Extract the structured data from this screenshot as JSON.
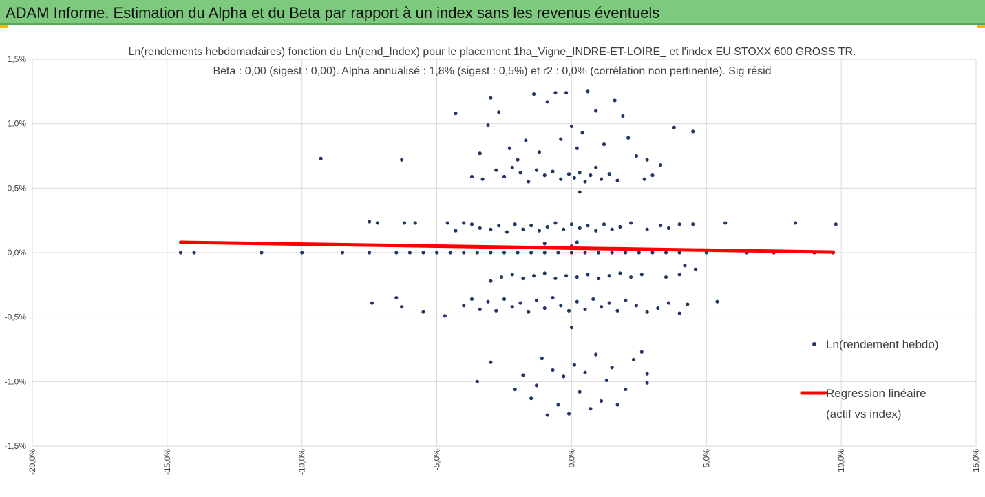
{
  "banner": {
    "title": "ADAM Informe. Estimation du Alpha et du Beta par rapport à un index sans les revenus éventuels",
    "background": "#7dc97d"
  },
  "chart_data": {
    "type": "scatter",
    "title_lines": [
      "Ln(rendements hebdomadaires) fonction du Ln(rend_Index) pour le placement 1ha_Vigne_INDRE-ET-LOIRE_ et l'index EU STOXX 600 GROSS TR.",
      "Beta : 0,00 (sigest : 0,00). Alpha annualisé : 1,8% (sigest : 0,5%) et r2 : 0,0% (corrélation non pertinente). Sig résid"
    ],
    "xlim": [
      -0.2,
      0.15
    ],
    "ylim": [
      -0.015,
      0.015
    ],
    "x_ticks": [
      -0.2,
      -0.15,
      -0.1,
      -0.05,
      0,
      0.05,
      0.1,
      0.15
    ],
    "x_tick_labels": [
      "-20,0%",
      "-15,0%",
      "-10,0%",
      "-5,0%",
      "0,0%",
      "5,0%",
      "10,0%",
      "15,0%"
    ],
    "y_ticks": [
      -0.015,
      -0.01,
      -0.005,
      0,
      0.005,
      0.01,
      0.015
    ],
    "y_tick_labels": [
      "-1,5%",
      "-1,0%",
      "-0,5%",
      "0,0%",
      "0,5%",
      "1,0%",
      "1,5%"
    ],
    "grid": true,
    "legend_position": "right",
    "series": [
      {
        "name": "Ln(rendement hebdo)",
        "kind": "scatter",
        "color": "#1f3864",
        "points": [
          [
            -0.145,
            0.0
          ],
          [
            -0.14,
            0.0
          ],
          [
            -0.115,
            0.0
          ],
          [
            -0.1,
            0.0
          ],
          [
            -0.085,
            0.0
          ],
          [
            -0.075,
            0.0
          ],
          [
            -0.065,
            0.0
          ],
          [
            -0.06,
            0.0
          ],
          [
            -0.055,
            0.0
          ],
          [
            -0.05,
            0.0
          ],
          [
            -0.045,
            0.0
          ],
          [
            -0.04,
            0.0
          ],
          [
            -0.035,
            0.0
          ],
          [
            -0.03,
            0.0
          ],
          [
            -0.025,
            0.0
          ],
          [
            -0.02,
            0.0
          ],
          [
            -0.015,
            0.0
          ],
          [
            -0.01,
            0.0
          ],
          [
            -0.005,
            0.0
          ],
          [
            0.0,
            0.0
          ],
          [
            0.005,
            0.0
          ],
          [
            0.01,
            0.0
          ],
          [
            0.015,
            0.0
          ],
          [
            0.02,
            0.0
          ],
          [
            0.025,
            0.0
          ],
          [
            0.03,
            0.0
          ],
          [
            0.035,
            0.0
          ],
          [
            0.04,
            0.0
          ],
          [
            0.05,
            0.0
          ],
          [
            0.065,
            0.0
          ],
          [
            0.075,
            0.0
          ],
          [
            0.09,
            0.0
          ],
          [
            0.097,
            0.0
          ],
          [
            -0.093,
            0.0073
          ],
          [
            -0.063,
            0.0072
          ],
          [
            -0.043,
            0.0108
          ],
          [
            -0.034,
            0.0077
          ],
          [
            -0.031,
            0.0099
          ],
          [
            -0.03,
            0.012
          ],
          [
            -0.027,
            0.0109
          ],
          [
            -0.023,
            0.0081
          ],
          [
            -0.02,
            0.0072
          ],
          [
            -0.017,
            0.0087
          ],
          [
            -0.014,
            0.0123
          ],
          [
            -0.012,
            0.0078
          ],
          [
            -0.009,
            0.0117
          ],
          [
            -0.006,
            0.0124
          ],
          [
            -0.004,
            0.0088
          ],
          [
            -0.002,
            0.0124
          ],
          [
            0.0,
            0.0098
          ],
          [
            0.002,
            0.0081
          ],
          [
            0.004,
            0.0093
          ],
          [
            0.006,
            0.0125
          ],
          [
            0.009,
            0.011
          ],
          [
            0.012,
            0.0084
          ],
          [
            0.016,
            0.0118
          ],
          [
            0.019,
            0.0106
          ],
          [
            0.021,
            0.0089
          ],
          [
            0.024,
            0.0075
          ],
          [
            0.028,
            0.0072
          ],
          [
            0.033,
            0.0068
          ],
          [
            0.038,
            0.0097
          ],
          [
            0.045,
            0.0094
          ],
          [
            -0.037,
            0.0059
          ],
          [
            -0.033,
            0.0057
          ],
          [
            -0.028,
            0.0064
          ],
          [
            -0.025,
            0.0059
          ],
          [
            -0.022,
            0.0066
          ],
          [
            -0.019,
            0.0062
          ],
          [
            -0.016,
            0.0055
          ],
          [
            -0.013,
            0.0064
          ],
          [
            -0.01,
            0.006
          ],
          [
            -0.007,
            0.0063
          ],
          [
            -0.004,
            0.0057
          ],
          [
            -0.001,
            0.0061
          ],
          [
            0.001,
            0.0058
          ],
          [
            0.003,
            0.0062
          ],
          [
            0.005,
            0.0055
          ],
          [
            0.007,
            0.006
          ],
          [
            0.009,
            0.0066
          ],
          [
            0.011,
            0.0057
          ],
          [
            0.014,
            0.0061
          ],
          [
            0.017,
            0.0056
          ],
          [
            0.027,
            0.0057
          ],
          [
            0.03,
            0.006
          ],
          [
            0.003,
            0.0047
          ],
          [
            -0.075,
            0.0024
          ],
          [
            -0.072,
            0.0023
          ],
          [
            -0.062,
            0.0023
          ],
          [
            -0.058,
            0.0023
          ],
          [
            -0.046,
            0.0023
          ],
          [
            -0.043,
            0.0017
          ],
          [
            -0.04,
            0.0023
          ],
          [
            -0.037,
            0.0022
          ],
          [
            -0.034,
            0.0019
          ],
          [
            -0.03,
            0.0018
          ],
          [
            -0.027,
            0.0021
          ],
          [
            -0.024,
            0.0016
          ],
          [
            -0.021,
            0.0022
          ],
          [
            -0.018,
            0.0018
          ],
          [
            -0.015,
            0.0021
          ],
          [
            -0.012,
            0.0017
          ],
          [
            -0.009,
            0.002
          ],
          [
            -0.006,
            0.0023
          ],
          [
            -0.003,
            0.0018
          ],
          [
            0.0,
            0.0022
          ],
          [
            0.003,
            0.0019
          ],
          [
            0.006,
            0.0021
          ],
          [
            0.009,
            0.0017
          ],
          [
            0.012,
            0.0022
          ],
          [
            0.015,
            0.0018
          ],
          [
            0.018,
            0.002
          ],
          [
            0.022,
            0.0023
          ],
          [
            0.028,
            0.0018
          ],
          [
            0.033,
            0.0021
          ],
          [
            0.036,
            0.0019
          ],
          [
            0.04,
            0.0022
          ],
          [
            0.045,
            0.0022
          ],
          [
            0.057,
            0.0023
          ],
          [
            0.083,
            0.0023
          ],
          [
            0.098,
            0.0022
          ],
          [
            0.0,
            0.0005
          ],
          [
            0.002,
            0.0008
          ],
          [
            -0.01,
            0.0007
          ],
          [
            -0.03,
            -0.0022
          ],
          [
            -0.026,
            -0.0019
          ],
          [
            -0.022,
            -0.0017
          ],
          [
            -0.018,
            -0.002
          ],
          [
            -0.014,
            -0.0018
          ],
          [
            -0.01,
            -0.0016
          ],
          [
            -0.006,
            -0.002
          ],
          [
            -0.002,
            -0.0018
          ],
          [
            0.002,
            -0.0019
          ],
          [
            0.006,
            -0.0017
          ],
          [
            0.01,
            -0.002
          ],
          [
            0.014,
            -0.0018
          ],
          [
            0.018,
            -0.0016
          ],
          [
            0.022,
            -0.0019
          ],
          [
            0.026,
            -0.0017
          ],
          [
            0.035,
            -0.0019
          ],
          [
            0.04,
            -0.0017
          ],
          [
            0.042,
            -0.001
          ],
          [
            0.046,
            -0.0013
          ],
          [
            -0.074,
            -0.0039
          ],
          [
            -0.065,
            -0.0035
          ],
          [
            -0.063,
            -0.0042
          ],
          [
            -0.055,
            -0.0046
          ],
          [
            -0.047,
            -0.0049
          ],
          [
            -0.04,
            -0.0041
          ],
          [
            -0.037,
            -0.0036
          ],
          [
            -0.034,
            -0.0044
          ],
          [
            -0.031,
            -0.0038
          ],
          [
            -0.028,
            -0.0045
          ],
          [
            -0.025,
            -0.0036
          ],
          [
            -0.022,
            -0.0042
          ],
          [
            -0.019,
            -0.0039
          ],
          [
            -0.016,
            -0.0046
          ],
          [
            -0.013,
            -0.0037
          ],
          [
            -0.01,
            -0.0043
          ],
          [
            -0.007,
            -0.0035
          ],
          [
            -0.004,
            -0.0041
          ],
          [
            -0.001,
            -0.0045
          ],
          [
            0.002,
            -0.0038
          ],
          [
            0.005,
            -0.0044
          ],
          [
            0.008,
            -0.0036
          ],
          [
            0.011,
            -0.0042
          ],
          [
            0.014,
            -0.0039
          ],
          [
            0.017,
            -0.0045
          ],
          [
            0.02,
            -0.0037
          ],
          [
            0.024,
            -0.0041
          ],
          [
            0.028,
            -0.0046
          ],
          [
            0.032,
            -0.0043
          ],
          [
            0.036,
            -0.0039
          ],
          [
            0.04,
            -0.0047
          ],
          [
            0.043,
            -0.004
          ],
          [
            0.054,
            -0.0038
          ],
          [
            0.0,
            -0.0058
          ],
          [
            -0.035,
            -0.01
          ],
          [
            -0.03,
            -0.0085
          ],
          [
            -0.021,
            -0.0106
          ],
          [
            -0.018,
            -0.0095
          ],
          [
            -0.015,
            -0.0113
          ],
          [
            -0.013,
            -0.0103
          ],
          [
            -0.011,
            -0.0082
          ],
          [
            -0.009,
            -0.0126
          ],
          [
            -0.007,
            -0.0091
          ],
          [
            -0.005,
            -0.0118
          ],
          [
            -0.003,
            -0.0096
          ],
          [
            -0.001,
            -0.0125
          ],
          [
            0.001,
            -0.0087
          ],
          [
            0.003,
            -0.0108
          ],
          [
            0.005,
            -0.0093
          ],
          [
            0.007,
            -0.0121
          ],
          [
            0.009,
            -0.0079
          ],
          [
            0.011,
            -0.0115
          ],
          [
            0.013,
            -0.0099
          ],
          [
            0.015,
            -0.0089
          ],
          [
            0.017,
            -0.0118
          ],
          [
            0.02,
            -0.0106
          ],
          [
            0.023,
            -0.0083
          ],
          [
            0.026,
            -0.0077
          ],
          [
            0.028,
            -0.0101
          ],
          [
            0.028,
            -0.0094
          ]
        ]
      },
      {
        "name": "Regression linéaire (actif vs index)",
        "kind": "line",
        "color": "#ff0000",
        "points": [
          [
            -0.145,
            0.0008
          ],
          [
            0.097,
            5e-05
          ]
        ]
      }
    ],
    "legend": {
      "scatter_label": "Ln(rendement hebdo)",
      "line_label_1": "Regression linéaire",
      "line_label_2": "(actif vs index)"
    }
  }
}
